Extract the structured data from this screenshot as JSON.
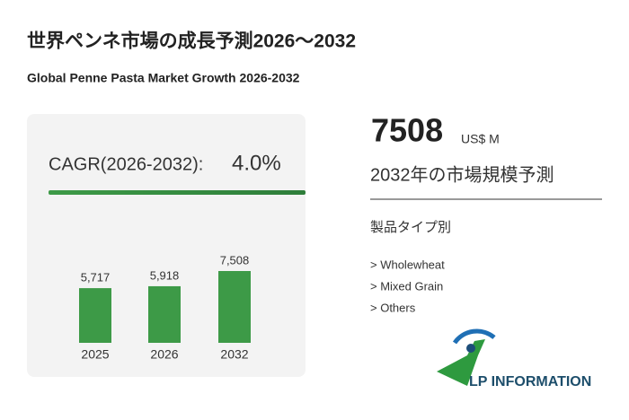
{
  "header": {
    "title": "世界ペンネ市場の成長予測2026～2032",
    "subtitle": "Global Penne Pasta Market Growth 2026-2032"
  },
  "cagr": {
    "label": "CAGR(2026-2032):",
    "value": "4.0%"
  },
  "chart_data": {
    "type": "bar",
    "categories": [
      "2025",
      "2026",
      "2032"
    ],
    "values": [
      5717,
      5918,
      7508
    ],
    "value_labels": [
      "5,717",
      "5,918",
      "7,508"
    ],
    "color": "#3d9a47"
  },
  "highlight": {
    "value": "7508",
    "unit": "US$ M",
    "caption": "2032年の市場規模予測"
  },
  "segments": {
    "heading": "製品タイプ別",
    "items": [
      "> Wholewheat",
      "> Mixed Grain",
      "> Others"
    ]
  },
  "logo": {
    "text": "LP INFORMATION"
  }
}
